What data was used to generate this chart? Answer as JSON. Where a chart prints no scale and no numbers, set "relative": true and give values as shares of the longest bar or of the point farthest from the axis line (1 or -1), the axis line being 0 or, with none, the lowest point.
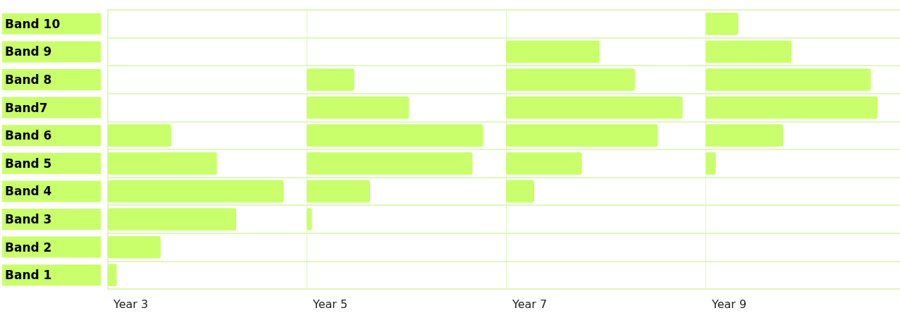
{
  "chart_data": [
    {
      "type": "bar",
      "orientation": "horizontal",
      "relative": true,
      "xlabel": "Year 3",
      "categories": [
        "Band 10",
        "Band 9",
        "Band 8",
        "Band7",
        "Band 6",
        "Band 5",
        "Band 4",
        "Band 3",
        "Band 2",
        "Band 1"
      ],
      "values": [
        null,
        null,
        null,
        null,
        0.36,
        0.62,
        1.0,
        0.73,
        0.3,
        0.05
      ],
      "color": "#c8ff6a",
      "grid": "y",
      "tick_labels": "y"
    },
    {
      "type": "bar",
      "orientation": "horizontal",
      "relative": true,
      "xlabel": "Year 5",
      "categories": [
        null,
        null,
        null,
        null,
        null,
        null,
        null,
        null,
        null,
        null
      ],
      "values": [
        null,
        null,
        0.27,
        0.58,
        1.0,
        0.94,
        0.36,
        0.03,
        null,
        null
      ],
      "color": "#c8ff6a",
      "grid": "y"
    },
    {
      "type": "bar",
      "orientation": "horizontal",
      "relative": true,
      "xlabel": "Year 7",
      "categories": [
        null,
        null,
        null,
        null,
        null,
        null,
        null,
        null,
        null,
        null
      ],
      "values": [
        null,
        0.53,
        0.73,
        1.0,
        0.86,
        0.43,
        0.16,
        null,
        null,
        null
      ],
      "color": "#c8ff6a",
      "grid": "y"
    },
    {
      "type": "bar",
      "orientation": "horizontal",
      "relative": true,
      "xlabel": "Year 9",
      "categories": [
        null,
        null,
        null,
        null,
        null,
        null,
        null,
        null,
        null,
        null
      ],
      "values": [
        0.19,
        0.5,
        0.96,
        1.0,
        0.45,
        0.06,
        null,
        null,
        null,
        null
      ],
      "color": "#c8ff6a",
      "grid": "y"
    }
  ]
}
